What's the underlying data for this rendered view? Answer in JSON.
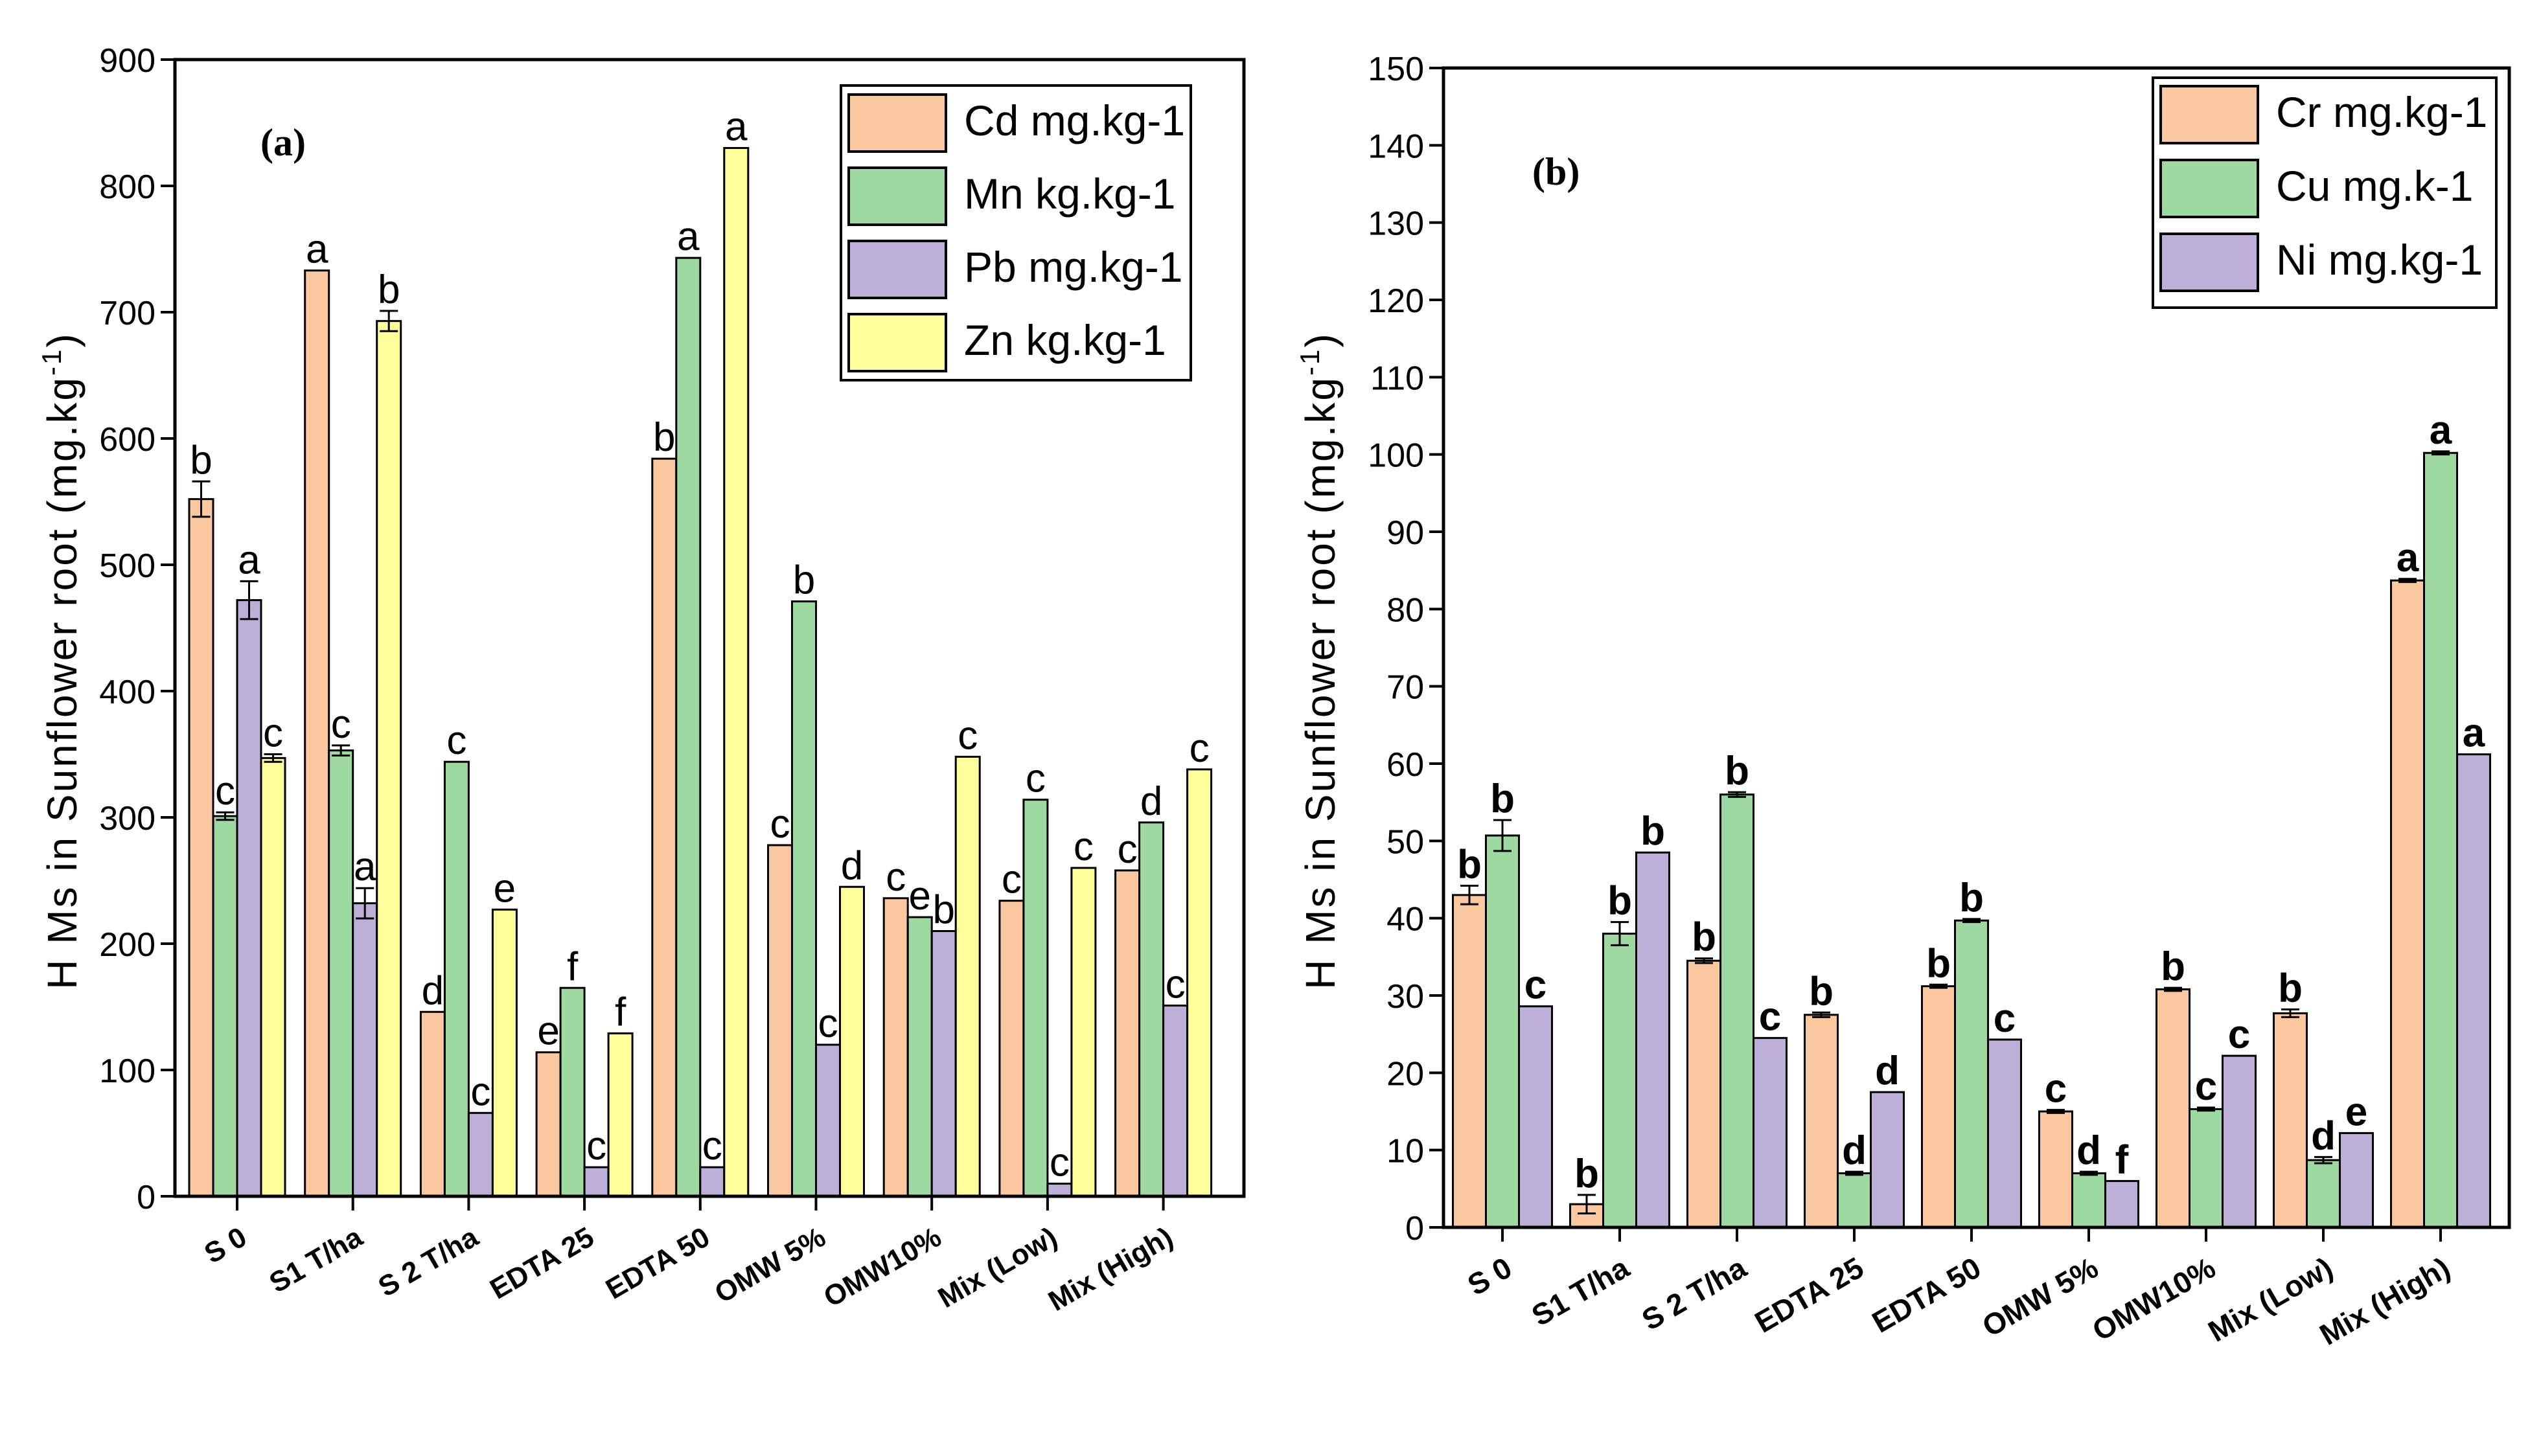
{
  "chart_data": [
    {
      "type": "bar",
      "panel_label": "(a)",
      "ylabel": "H Ms in Sunflower root (mg.kg",
      "ylabel_exp": "-1",
      "ylabel_close": ")",
      "xlabel": "",
      "ylim": [
        0,
        900
      ],
      "yticks": [
        0,
        100,
        200,
        300,
        400,
        500,
        600,
        700,
        800,
        900
      ],
      "categories": [
        "S 0",
        "S1 T/ha",
        "S 2 T/ha",
        "EDTA 25",
        "EDTA 50",
        "OMW 5%",
        "OMW10%",
        "Mix (Low)",
        "Mix (High)"
      ],
      "legend_position": "top-right",
      "series": [
        {
          "name": "Cd mg.kg-1",
          "color": "#FAC79F",
          "values": [
            552,
            733,
            146,
            114,
            584,
            278,
            236,
            234,
            258
          ],
          "errors": [
            14,
            0,
            0,
            0,
            0,
            0,
            0,
            0,
            0
          ],
          "letters": [
            "b",
            "a",
            "d",
            "e",
            "b",
            "c",
            "c",
            "c",
            "c"
          ]
        },
        {
          "name": "Mn kg.kg-1",
          "color": "#9ED9A2",
          "values": [
            301,
            353,
            344,
            165,
            743,
            471,
            221,
            314,
            296
          ],
          "errors": [
            3,
            4,
            0,
            0,
            0,
            0,
            0,
            0,
            0
          ],
          "letters": [
            "c",
            "c",
            "c",
            "f",
            "a",
            "b",
            "e",
            "c",
            "d"
          ]
        },
        {
          "name": "Pb mg.kg-1",
          "color": "#BCB0D8",
          "values": [
            472,
            232,
            66,
            23,
            23,
            120,
            210,
            10,
            151
          ],
          "errors": [
            15,
            12,
            0,
            0,
            0,
            0,
            0,
            0,
            0
          ],
          "letters": [
            "a",
            "a",
            "c",
            "c",
            "c",
            "c",
            "b",
            "c",
            "c"
          ]
        },
        {
          "name": "Zn kg.kg-1",
          "color": "#FEFE9A",
          "values": [
            347,
            693,
            227,
            129,
            830,
            245,
            348,
            260,
            338
          ],
          "errors": [
            3,
            8,
            0,
            0,
            0,
            0,
            0,
            0,
            0
          ],
          "letters": [
            "c",
            "b",
            "e",
            "f",
            "a",
            "d",
            "c",
            "c",
            "c"
          ]
        }
      ]
    },
    {
      "type": "bar",
      "panel_label": "(b)",
      "ylabel": "H Ms in Sunflower root (mg.kg",
      "ylabel_exp": "-1",
      "ylabel_close": ")",
      "xlabel": "",
      "ylim": [
        0,
        150
      ],
      "yticks": [
        0,
        10,
        20,
        30,
        40,
        50,
        60,
        70,
        80,
        90,
        100,
        110,
        120,
        130,
        140,
        150
      ],
      "categories": [
        "S 0",
        "S1 T/ha",
        "S 2 T/ha",
        "EDTA 25",
        "EDTA 50",
        "OMW 5%",
        "OMW10%",
        "Mix (Low)",
        "Mix (High)"
      ],
      "legend_position": "top-right",
      "series": [
        {
          "name": "Cr mg.kg-1",
          "color": "#FAC79F",
          "values": [
            43,
            3,
            34.5,
            27.5,
            31.2,
            15,
            30.8,
            27.7,
            83.7
          ],
          "errors": [
            1.2,
            1.2,
            0.3,
            0.3,
            0.2,
            0.2,
            0.2,
            0.5,
            0.2
          ],
          "letters": [
            "b",
            "b",
            "b",
            "b",
            "b",
            "c",
            "b",
            "b",
            "a"
          ]
        },
        {
          "name": "Cu mg.k-1",
          "color": "#9ED9A2",
          "values": [
            50.7,
            38,
            56,
            7,
            39.7,
            7,
            15.3,
            8.7,
            100.2
          ],
          "errors": [
            2.0,
            1.5,
            0.3,
            0.2,
            0.2,
            0.2,
            0.2,
            0.4,
            0.2
          ],
          "letters": [
            "b",
            "b",
            "b",
            "d",
            "b",
            "d",
            "c",
            "d",
            "a"
          ]
        },
        {
          "name": "Ni mg.kg-1",
          "color": "#BCB0D8",
          "values": [
            28.6,
            48.5,
            24.5,
            17.5,
            24.3,
            6,
            22.2,
            12.2,
            61.2
          ],
          "errors": [
            0,
            0,
            0,
            0,
            0,
            0,
            0,
            0,
            0
          ],
          "letters": [
            "c",
            "b",
            "c",
            "d",
            "c",
            "f",
            "c",
            "e",
            "a"
          ]
        }
      ]
    }
  ]
}
